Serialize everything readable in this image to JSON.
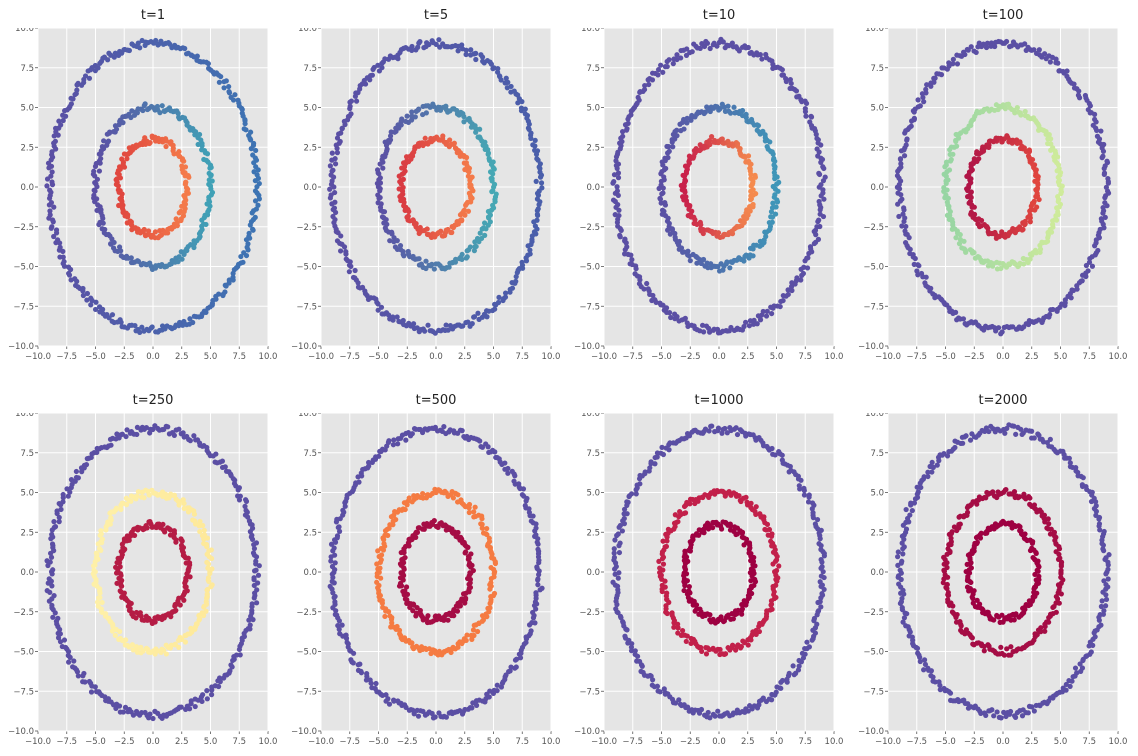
{
  "chart_data": [
    {
      "type": "scatter",
      "title": "t=1",
      "xlim": [
        -10,
        10
      ],
      "ylim": [
        -10,
        10
      ],
      "xticks": [
        "−10.0",
        "−7.5",
        "−5.0",
        "−2.5",
        "0.0",
        "2.5",
        "5.0",
        "7.5",
        "10.0"
      ],
      "yticks": [
        "10.0",
        "7.5",
        "5.0",
        "2.5",
        "0.0",
        "−2.5",
        "−5.0",
        "−7.5",
        "−10.0"
      ],
      "grid": true,
      "series": [
        {
          "radius": 9,
          "colors": [
            "#3d74b3",
            "#5b4fa4"
          ]
        },
        {
          "radius": 5,
          "colors": [
            "#40a1b6",
            "#5b4fa4"
          ]
        },
        {
          "radius": 3,
          "colors": [
            "#f47b4a",
            "#e0463f"
          ]
        }
      ]
    },
    {
      "type": "scatter",
      "title": "t=5",
      "xlim": [
        -10,
        10
      ],
      "ylim": [
        -10,
        10
      ],
      "xticks": [
        "−10.0",
        "−7.5",
        "−5.0",
        "−2.5",
        "0.0",
        "2.5",
        "5.0",
        "7.5",
        "10.0"
      ],
      "yticks": [
        "10.0",
        "7.5",
        "5.0",
        "2.5",
        "0.0",
        "−2.5",
        "−5.0",
        "−7.5",
        "−10.0"
      ],
      "grid": true,
      "series": [
        {
          "radius": 9,
          "colors": [
            "#4a5fab",
            "#5b4fa4"
          ]
        },
        {
          "radius": 5,
          "colors": [
            "#46a8b4",
            "#5b4fa4"
          ]
        },
        {
          "radius": 3,
          "colors": [
            "#f47b4a",
            "#d93b43"
          ]
        }
      ]
    },
    {
      "type": "scatter",
      "title": "t=10",
      "xlim": [
        -10,
        10
      ],
      "ylim": [
        -10,
        10
      ],
      "xticks": [
        "−10.0",
        "−7.5",
        "−5.0",
        "−2.5",
        "0.0",
        "2.5",
        "5.0",
        "7.5",
        "10.0"
      ],
      "yticks": [
        "10.0",
        "7.5",
        "5.0",
        "2.5",
        "0.0",
        "−2.5",
        "−5.0",
        "−7.5",
        "−10.0"
      ],
      "grid": true,
      "series": [
        {
          "radius": 9,
          "colors": [
            "#5b4fa4",
            "#5b4fa4"
          ]
        },
        {
          "radius": 5,
          "colors": [
            "#3f96b8",
            "#5b4fa4"
          ]
        },
        {
          "radius": 3,
          "colors": [
            "#f58b4e",
            "#c8204a"
          ]
        }
      ]
    },
    {
      "type": "scatter",
      "title": "t=100",
      "xlim": [
        -10,
        10
      ],
      "ylim": [
        -10,
        10
      ],
      "xticks": [
        "−10.0",
        "−7.5",
        "−5.0",
        "−2.5",
        "0.0",
        "2.5",
        "5.0",
        "7.5",
        "10.0"
      ],
      "yticks": [
        "10.0",
        "7.5",
        "5.0",
        "2.5",
        "0.0",
        "−2.5",
        "−5.0",
        "−7.5",
        "−10.0"
      ],
      "grid": true,
      "series": [
        {
          "radius": 9,
          "colors": [
            "#5b4fa4",
            "#5b4fa4"
          ]
        },
        {
          "radius": 5,
          "colors": [
            "#cfeb9b",
            "#97d5a3"
          ]
        },
        {
          "radius": 3,
          "colors": [
            "#e0463f",
            "#b01547"
          ]
        }
      ]
    },
    {
      "type": "scatter",
      "title": "t=250",
      "xlim": [
        -10,
        10
      ],
      "ylim": [
        -10,
        10
      ],
      "xticks": [
        "−10.0",
        "−7.5",
        "−5.0",
        "−2.5",
        "0.0",
        "2.5",
        "5.0",
        "7.5",
        "10.0"
      ],
      "yticks": [
        "10.0",
        "7.5",
        "5.0",
        "2.5",
        "0.0",
        "−2.5",
        "−5.0",
        "−7.5",
        "−10.0"
      ],
      "grid": true,
      "series": [
        {
          "radius": 9,
          "colors": [
            "#5b4fa4",
            "#5b4fa4"
          ]
        },
        {
          "radius": 5,
          "colors": [
            "#fee99a",
            "#fef0a8"
          ]
        },
        {
          "radius": 3,
          "colors": [
            "#b51c45",
            "#b51c45"
          ]
        }
      ]
    },
    {
      "type": "scatter",
      "title": "t=500",
      "xlim": [
        -10,
        10
      ],
      "ylim": [
        -10,
        10
      ],
      "xticks": [
        "−10.0",
        "−7.5",
        "−5.0",
        "−2.5",
        "0.0",
        "2.5",
        "5.0",
        "7.5",
        "10.0"
      ],
      "yticks": [
        "10.0",
        "7.5",
        "5.0",
        "2.5",
        "0.0",
        "−2.5",
        "−5.0",
        "−7.5",
        "−10.0"
      ],
      "grid": true,
      "series": [
        {
          "radius": 9,
          "colors": [
            "#5b4fa4",
            "#5b4fa4"
          ]
        },
        {
          "radius": 5,
          "colors": [
            "#f57b42",
            "#f57b42"
          ]
        },
        {
          "radius": 3,
          "colors": [
            "#a50d45",
            "#a50d45"
          ]
        }
      ]
    },
    {
      "type": "scatter",
      "title": "t=1000",
      "xlim": [
        -10,
        10
      ],
      "ylim": [
        -10,
        10
      ],
      "xticks": [
        "−10.0",
        "−7.5",
        "−5.0",
        "−2.5",
        "0.0",
        "2.5",
        "5.0",
        "7.5",
        "10.0"
      ],
      "yticks": [
        "10.0",
        "7.5",
        "5.0",
        "2.5",
        "0.0",
        "−2.5",
        "−5.0",
        "−7.5",
        "−10.0"
      ],
      "grid": true,
      "series": [
        {
          "radius": 9,
          "colors": [
            "#5b4fa4",
            "#5b4fa4"
          ]
        },
        {
          "radius": 5,
          "colors": [
            "#c2204a",
            "#c2204a"
          ]
        },
        {
          "radius": 3,
          "colors": [
            "#9e0142",
            "#9e0142"
          ]
        }
      ]
    },
    {
      "type": "scatter",
      "title": "t=2000",
      "xlim": [
        -10,
        10
      ],
      "ylim": [
        -10,
        10
      ],
      "xticks": [
        "−10.0",
        "−7.5",
        "−5.0",
        "−2.5",
        "0.0",
        "2.5",
        "5.0",
        "7.5",
        "10.0"
      ],
      "yticks": [
        "10.0",
        "7.5",
        "5.0",
        "2.5",
        "0.0",
        "−2.5",
        "−5.0",
        "−7.5",
        "−10.0"
      ],
      "grid": true,
      "series": [
        {
          "radius": 9,
          "colors": [
            "#5b4fa4",
            "#5b4fa4"
          ]
        },
        {
          "radius": 5,
          "colors": [
            "#a50d45",
            "#a50d45"
          ]
        },
        {
          "radius": 3,
          "colors": [
            "#9e0142",
            "#9e0142"
          ]
        }
      ]
    }
  ]
}
